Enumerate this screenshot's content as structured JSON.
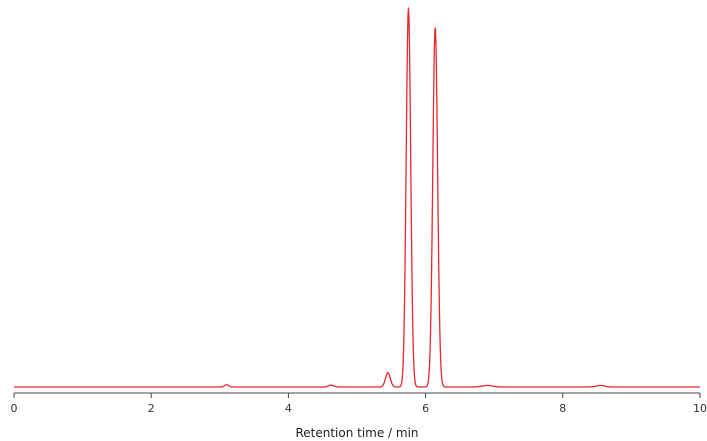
{
  "chart_data": {
    "type": "line",
    "title": "",
    "xlabel": "Retention time / min",
    "ylabel": "",
    "xlim": [
      0,
      10
    ],
    "ylim": [
      0,
      1.0
    ],
    "x_ticks": [
      0,
      2,
      4,
      6,
      8,
      10
    ],
    "x_tick_labels": [
      "0",
      "2",
      "4",
      "6",
      "8",
      "10"
    ],
    "y_axis_visible": false,
    "grid": false,
    "legend": "none",
    "series": [
      {
        "color": "#e8262d",
        "peaks": [
          {
            "center": 3.1,
            "height": 0.006,
            "width": 0.03
          },
          {
            "center": 4.62,
            "height": 0.005,
            "width": 0.04
          },
          {
            "center": 5.45,
            "height": 0.038,
            "width": 0.035
          },
          {
            "center": 5.75,
            "height": 1.0,
            "width": 0.033
          },
          {
            "center": 6.14,
            "height": 0.95,
            "width": 0.035
          },
          {
            "center": 6.9,
            "height": 0.004,
            "width": 0.08
          },
          {
            "center": 8.55,
            "height": 0.004,
            "width": 0.06
          }
        ]
      }
    ]
  }
}
